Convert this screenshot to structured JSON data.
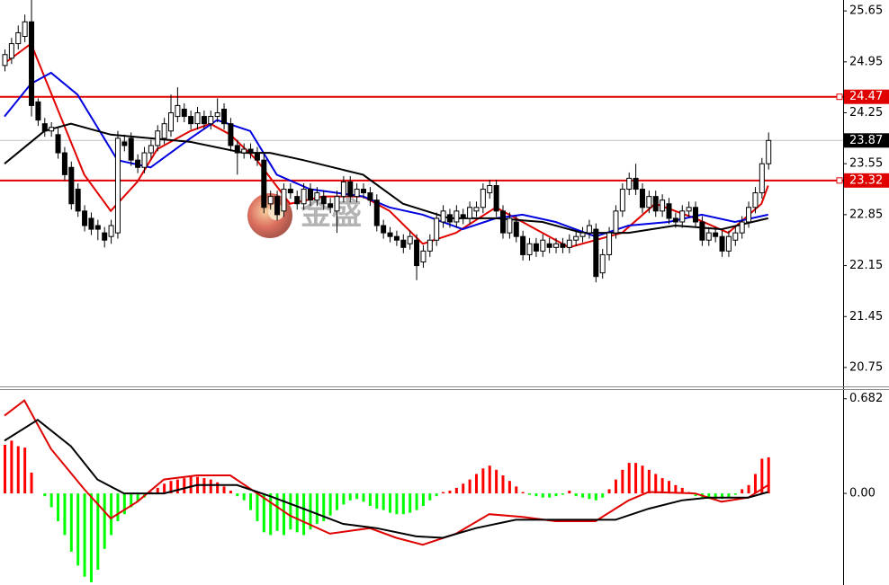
{
  "chart_data": [
    {
      "type": "candlestick",
      "watermark": "金盛",
      "open": [
        24.9,
        25.0,
        25.2,
        25.3,
        25.5,
        24.4,
        24.1,
        24.0,
        23.95,
        23.7,
        23.5,
        23.2,
        22.9,
        22.8,
        22.7,
        22.6,
        22.55,
        22.6,
        23.85,
        23.9,
        23.6,
        23.5,
        23.7,
        23.8,
        23.9,
        24.0,
        24.2,
        24.3,
        24.2,
        24.1,
        24.2,
        24.1,
        24.2,
        24.3,
        24.1,
        23.8,
        23.7,
        23.75,
        23.7,
        23.6,
        23.0,
        23.1,
        22.9,
        23.2,
        23.1,
        23.0,
        23.2,
        23.05,
        23.1,
        23.0,
        22.9,
        23.1,
        23.3,
        23.1,
        23.2,
        23.15,
        23.05,
        22.7,
        22.6,
        22.55,
        22.5,
        22.45,
        22.5,
        22.2,
        22.35,
        22.5,
        22.75,
        22.85,
        22.75,
        22.85,
        22.8,
        22.9,
        22.95,
        23.15,
        23.25,
        22.9,
        22.6,
        22.75,
        22.55,
        22.3,
        22.45,
        22.35,
        22.45,
        22.4,
        22.45,
        22.4,
        22.5,
        22.55,
        22.6,
        22.65,
        22.05,
        22.3,
        22.6,
        22.9,
        23.2,
        23.35,
        23.2,
        22.95,
        23.1,
        22.9,
        23.0,
        22.8,
        22.75,
        22.9,
        22.95,
        22.75,
        22.5,
        22.6,
        22.55,
        22.35,
        22.5,
        22.6,
        22.75,
        22.95,
        23.15,
        23.55
      ],
      "high": [
        25.12,
        25.28,
        25.45,
        25.6,
        25.8,
        24.45,
        24.18,
        24.12,
        24.05,
        23.78,
        23.58,
        23.28,
        22.98,
        22.88,
        22.78,
        22.68,
        22.78,
        24.0,
        23.95,
        23.98,
        23.68,
        23.78,
        23.88,
        24.08,
        24.18,
        24.5,
        24.6,
        24.38,
        24.28,
        24.33,
        24.28,
        24.28,
        24.45,
        24.38,
        24.18,
        23.88,
        23.83,
        23.83,
        23.78,
        23.68,
        23.18,
        23.18,
        23.28,
        23.28,
        23.18,
        23.28,
        23.28,
        23.23,
        23.18,
        23.08,
        23.18,
        23.38,
        23.38,
        23.28,
        23.28,
        23.23,
        23.13,
        22.78,
        22.68,
        22.63,
        22.58,
        22.63,
        22.58,
        22.43,
        22.58,
        22.88,
        22.98,
        22.93,
        22.98,
        22.93,
        23.03,
        23.03,
        23.28,
        23.33,
        23.33,
        22.98,
        22.88,
        22.83,
        22.63,
        22.53,
        22.53,
        22.58,
        22.53,
        22.53,
        22.53,
        22.58,
        22.63,
        22.68,
        22.78,
        22.73,
        22.38,
        22.68,
        22.98,
        23.28,
        23.43,
        23.55,
        23.28,
        23.18,
        23.18,
        23.13,
        23.08,
        22.88,
        22.98,
        23.03,
        23.03,
        22.83,
        22.68,
        22.68,
        22.63,
        22.63,
        22.68,
        22.83,
        23.03,
        23.23,
        23.63,
        23.98
      ],
      "low": [
        24.82,
        24.92,
        25.12,
        25.22,
        24.2,
        24.07,
        23.92,
        23.92,
        23.62,
        23.32,
        22.92,
        22.82,
        22.62,
        22.57,
        22.5,
        22.4,
        22.45,
        22.52,
        23.72,
        23.52,
        23.42,
        23.42,
        23.62,
        23.72,
        23.82,
        23.92,
        24.12,
        24.12,
        24.02,
        24.02,
        24.02,
        24.02,
        24.12,
        24.02,
        23.72,
        23.4,
        23.62,
        23.62,
        23.52,
        22.87,
        22.92,
        22.77,
        22.82,
        23.07,
        22.92,
        22.92,
        22.97,
        22.97,
        22.92,
        22.87,
        22.6,
        23.02,
        23.02,
        23.02,
        23.07,
        22.97,
        22.62,
        22.52,
        22.47,
        22.42,
        22.32,
        22.37,
        21.95,
        22.12,
        22.27,
        22.42,
        22.67,
        22.67,
        22.67,
        22.72,
        22.72,
        22.82,
        22.87,
        23.07,
        22.82,
        22.52,
        22.52,
        22.47,
        22.22,
        22.22,
        22.27,
        22.27,
        22.32,
        22.32,
        22.32,
        22.32,
        22.42,
        22.47,
        22.52,
        21.92,
        21.97,
        22.22,
        22.52,
        22.82,
        23.12,
        23.12,
        22.87,
        22.87,
        22.82,
        22.82,
        22.72,
        22.67,
        22.67,
        22.82,
        22.67,
        22.42,
        22.42,
        22.47,
        22.27,
        22.27,
        22.42,
        22.52,
        22.67,
        22.87,
        23.07,
        23.47
      ],
      "close": [
        25.05,
        25.2,
        25.35,
        25.5,
        24.35,
        24.15,
        24.0,
        24.05,
        23.7,
        23.4,
        23.0,
        22.9,
        22.7,
        22.65,
        22.65,
        22.5,
        22.7,
        23.9,
        23.8,
        23.6,
        23.5,
        23.7,
        23.8,
        24.0,
        24.1,
        24.25,
        24.35,
        24.2,
        24.1,
        24.25,
        24.1,
        24.2,
        24.25,
        24.1,
        23.8,
        23.7,
        23.75,
        23.7,
        23.6,
        22.95,
        23.1,
        22.85,
        23.2,
        23.15,
        23.0,
        23.2,
        23.05,
        23.15,
        23.0,
        22.95,
        23.1,
        23.3,
        23.1,
        23.2,
        23.15,
        23.05,
        22.7,
        22.6,
        22.55,
        22.5,
        22.4,
        22.55,
        22.15,
        22.35,
        22.5,
        22.8,
        22.9,
        22.75,
        22.9,
        22.8,
        22.95,
        22.95,
        23.2,
        23.25,
        22.9,
        22.6,
        22.8,
        22.55,
        22.3,
        22.45,
        22.35,
        22.5,
        22.4,
        22.45,
        22.4,
        22.5,
        22.55,
        22.6,
        22.7,
        22.0,
        22.3,
        22.6,
        22.9,
        23.2,
        23.35,
        23.2,
        22.95,
        23.1,
        22.9,
        23.05,
        22.8,
        22.75,
        22.9,
        22.95,
        22.75,
        22.5,
        22.6,
        22.55,
        22.35,
        22.55,
        22.6,
        22.75,
        22.95,
        23.15,
        23.55,
        23.87
      ],
      "up_color": "#ffffff",
      "down_color": "#000000",
      "series": [
        {
          "color": "#e00000",
          "x": [
            0,
            4,
            8,
            12,
            16,
            20,
            23,
            28,
            31,
            34,
            38,
            43,
            48,
            54,
            58,
            63,
            68,
            74,
            79,
            85,
            89,
            93,
            98,
            104,
            109,
            114,
            115
          ],
          "values": [
            24.93,
            25.2,
            24.3,
            23.4,
            22.9,
            23.3,
            23.75,
            24.0,
            24.1,
            23.95,
            23.6,
            23.0,
            23.1,
            23.1,
            22.9,
            22.45,
            22.6,
            22.95,
            22.7,
            22.4,
            22.5,
            22.6,
            23.0,
            22.8,
            22.6,
            23.0,
            23.25
          ]
        },
        {
          "color": "#0000e0",
          "x": [
            0,
            4,
            7,
            11,
            17,
            22,
            28,
            32,
            37,
            41,
            46,
            54,
            58,
            63,
            69,
            74,
            78,
            83,
            89,
            94,
            100,
            105,
            110,
            115
          ],
          "values": [
            24.2,
            24.65,
            24.8,
            24.5,
            23.6,
            23.5,
            23.9,
            24.15,
            24.0,
            23.4,
            23.2,
            23.1,
            22.95,
            22.85,
            22.65,
            22.8,
            22.85,
            22.75,
            22.55,
            22.7,
            22.75,
            22.85,
            22.75,
            22.85
          ]
        },
        {
          "color": "#000000",
          "x": [
            0,
            6,
            10,
            16,
            22,
            28,
            36,
            40,
            45,
            54,
            60,
            67,
            74,
            81,
            87,
            94,
            101,
            108,
            115
          ],
          "values": [
            23.55,
            24.0,
            24.1,
            23.95,
            23.9,
            23.85,
            23.7,
            23.7,
            23.6,
            23.4,
            23.0,
            22.8,
            22.8,
            22.75,
            22.6,
            22.6,
            22.7,
            22.65,
            22.8
          ]
        }
      ],
      "levels": [
        {
          "value": 24.47,
          "color": "#e00000"
        },
        {
          "value": 23.32,
          "color": "#e00000"
        }
      ],
      "last_price": 23.87,
      "ylim": [
        20.49,
        25.8
      ],
      "yticks": [
        25.65,
        24.95,
        24.25,
        23.55,
        22.85,
        22.15,
        21.45,
        20.75
      ]
    },
    {
      "type": "macd",
      "values": [
        0.35,
        0.38,
        0.34,
        0.33,
        0.15,
        0.0,
        -0.02,
        -0.1,
        -0.2,
        -0.3,
        -0.42,
        -0.52,
        -0.6,
        -0.64,
        -0.55,
        -0.4,
        -0.3,
        -0.2,
        -0.15,
        -0.1,
        -0.06,
        -0.03,
        0.01,
        0.04,
        0.07,
        0.09,
        0.1,
        0.11,
        0.12,
        0.12,
        0.11,
        0.1,
        0.08,
        0.05,
        0.02,
        -0.02,
        -0.05,
        -0.12,
        -0.2,
        -0.28,
        -0.3,
        -0.27,
        -0.3,
        -0.26,
        -0.28,
        -0.3,
        -0.26,
        -0.22,
        -0.2,
        -0.16,
        -0.12,
        -0.08,
        -0.05,
        -0.04,
        -0.06,
        -0.09,
        -0.11,
        -0.12,
        -0.14,
        -0.15,
        -0.15,
        -0.14,
        -0.12,
        -0.09,
        -0.05,
        -0.02,
        0.01,
        0.02,
        0.04,
        0.07,
        0.1,
        0.14,
        0.18,
        0.2,
        0.17,
        0.13,
        0.09,
        0.05,
        0.01,
        -0.01,
        -0.02,
        -0.03,
        -0.03,
        -0.02,
        -0.01,
        0.02,
        -0.02,
        -0.03,
        -0.04,
        -0.05,
        -0.03,
        0.03,
        0.1,
        0.17,
        0.22,
        0.22,
        0.2,
        0.17,
        0.14,
        0.11,
        0.09,
        0.06,
        0.04,
        0.01,
        -0.02,
        -0.03,
        -0.04,
        -0.05,
        -0.04,
        -0.03,
        -0.01,
        0.03,
        0.06,
        0.14,
        0.25,
        0.26
      ],
      "up_color": "#ff0000",
      "down_color": "#00ff00",
      "series": [
        {
          "color": "#e00000",
          "x": [
            0,
            3,
            7,
            12,
            16,
            20,
            24,
            29,
            34,
            39,
            43,
            49,
            55,
            59,
            63,
            68,
            73,
            78,
            83,
            89,
            94,
            97,
            104,
            108,
            112,
            115
          ],
          "values": [
            0.56,
            0.67,
            0.32,
            0.03,
            -0.18,
            -0.06,
            0.1,
            0.13,
            0.13,
            -0.03,
            -0.16,
            -0.29,
            -0.25,
            -0.32,
            -0.37,
            -0.29,
            -0.15,
            -0.17,
            -0.2,
            -0.2,
            -0.05,
            0.01,
            0.0,
            -0.06,
            -0.03,
            0.06
          ]
        },
        {
          "color": "#000000",
          "x": [
            0,
            5,
            10,
            14,
            18,
            24,
            29,
            35,
            40,
            45,
            51,
            56,
            62,
            66,
            71,
            77,
            83,
            92,
            97,
            102,
            106,
            112,
            115
          ],
          "values": [
            0.38,
            0.53,
            0.34,
            0.1,
            0.0,
            0.0,
            0.06,
            0.06,
            -0.02,
            -0.11,
            -0.22,
            -0.25,
            -0.31,
            -0.32,
            -0.25,
            -0.19,
            -0.19,
            -0.19,
            -0.11,
            -0.05,
            -0.03,
            -0.03,
            0.01
          ]
        }
      ],
      "ylim": [
        -0.66,
        0.745
      ],
      "yticks": [
        0.682,
        {
          "value": 0,
          "label": "0.00"
        }
      ]
    }
  ]
}
